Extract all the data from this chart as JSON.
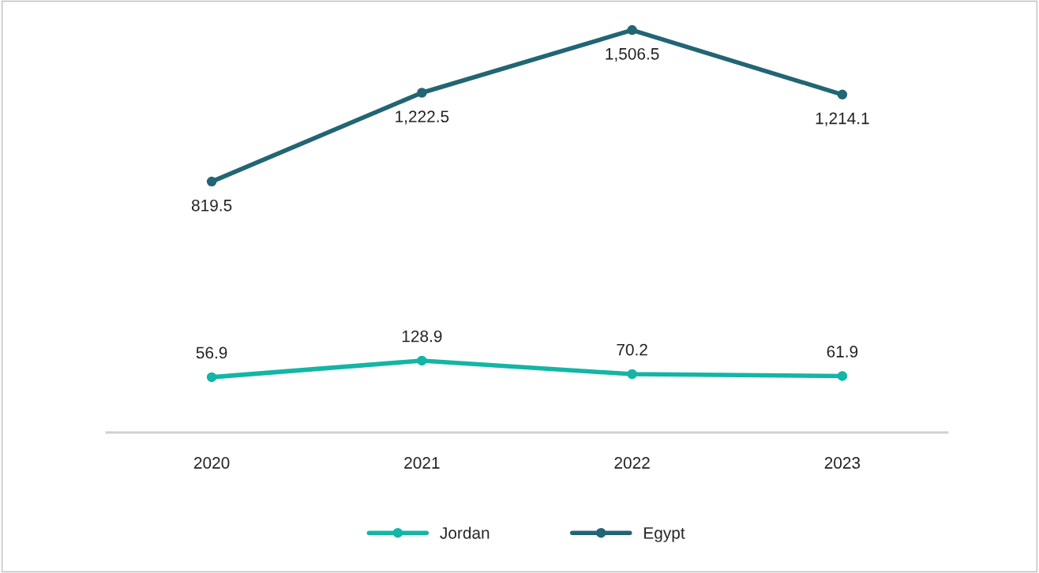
{
  "chart_data": [
    {
      "type": "line",
      "categories": [
        "2020",
        "2021",
        "2022",
        "2023"
      ],
      "series": [
        {
          "name": "Egypt",
          "color": "#226574",
          "values": [
            819.5,
            1222.5,
            1506.5,
            1214.1
          ],
          "value_labels": [
            "819.5",
            "1,222.5",
            "1,506.5",
            "1,214.1"
          ]
        }
      ],
      "tick_labels": false,
      "marker": "circle",
      "legend": "bottom"
    },
    {
      "type": "line",
      "categories": [
        "2020",
        "2021",
        "2022",
        "2023"
      ],
      "series": [
        {
          "name": "Jordan",
          "color": "#13b5a6",
          "values": [
            56.9,
            128.9,
            70.2,
            61.9
          ],
          "value_labels": [
            "56.9",
            "128.9",
            "70.2",
            "61.9"
          ]
        }
      ],
      "tick_labels": "x",
      "marker": "circle",
      "legend": "bottom"
    }
  ]
}
